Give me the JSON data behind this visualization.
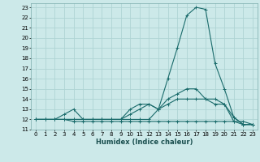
{
  "xlabel": "Humidex (Indice chaleur)",
  "bg_color": "#cce9e9",
  "grid_color": "#afd4d4",
  "line_color": "#1a6b6b",
  "xlim": [
    -0.5,
    23.5
  ],
  "ylim": [
    11,
    23.4
  ],
  "xticks": [
    0,
    1,
    2,
    3,
    4,
    5,
    6,
    7,
    8,
    9,
    10,
    11,
    12,
    13,
    14,
    15,
    16,
    17,
    18,
    19,
    20,
    21,
    22,
    23
  ],
  "yticks": [
    11,
    12,
    13,
    14,
    15,
    16,
    17,
    18,
    19,
    20,
    21,
    22,
    23
  ],
  "lines": [
    {
      "x": [
        0,
        1,
        2,
        3,
        4,
        5,
        6,
        7,
        8,
        9,
        10,
        11,
        12,
        13,
        14,
        15,
        16,
        17,
        18,
        19,
        20,
        21,
        22,
        23
      ],
      "y": [
        12,
        12,
        12,
        12,
        12,
        12,
        12,
        12,
        12,
        12,
        12,
        12,
        12,
        13,
        16,
        19,
        22.2,
        23,
        22.8,
        17.5,
        15,
        12.2,
        11.5,
        11.5
      ]
    },
    {
      "x": [
        0,
        1,
        2,
        3,
        4,
        5,
        6,
        7,
        8,
        9,
        10,
        11,
        12,
        13,
        14,
        15,
        16,
        17,
        18,
        19,
        20,
        21,
        22,
        23
      ],
      "y": [
        12,
        12,
        12,
        12.5,
        13,
        12,
        12,
        12,
        12,
        12,
        13,
        13.5,
        13.5,
        13,
        14,
        14.5,
        15,
        15,
        14,
        13.5,
        13.5,
        12.2,
        11.5,
        11.5
      ]
    },
    {
      "x": [
        0,
        1,
        2,
        3,
        4,
        5,
        6,
        7,
        8,
        9,
        10,
        11,
        12,
        13,
        14,
        15,
        16,
        17,
        18,
        19,
        20,
        21,
        22,
        23
      ],
      "y": [
        12,
        12,
        12,
        12,
        12,
        12,
        12,
        12,
        12,
        12,
        12.5,
        13,
        13.5,
        13,
        13.5,
        14,
        14,
        14,
        14,
        14,
        13.5,
        11.8,
        11.5,
        11.5
      ]
    },
    {
      "x": [
        0,
        1,
        2,
        3,
        4,
        5,
        6,
        7,
        8,
        9,
        10,
        11,
        12,
        13,
        14,
        15,
        16,
        17,
        18,
        19,
        20,
        21,
        22,
        23
      ],
      "y": [
        12,
        12,
        12,
        12,
        11.8,
        11.8,
        11.8,
        11.8,
        11.8,
        11.8,
        11.8,
        11.8,
        11.8,
        11.8,
        11.8,
        11.8,
        11.8,
        11.8,
        11.8,
        11.8,
        11.8,
        11.8,
        11.8,
        11.5
      ]
    }
  ]
}
